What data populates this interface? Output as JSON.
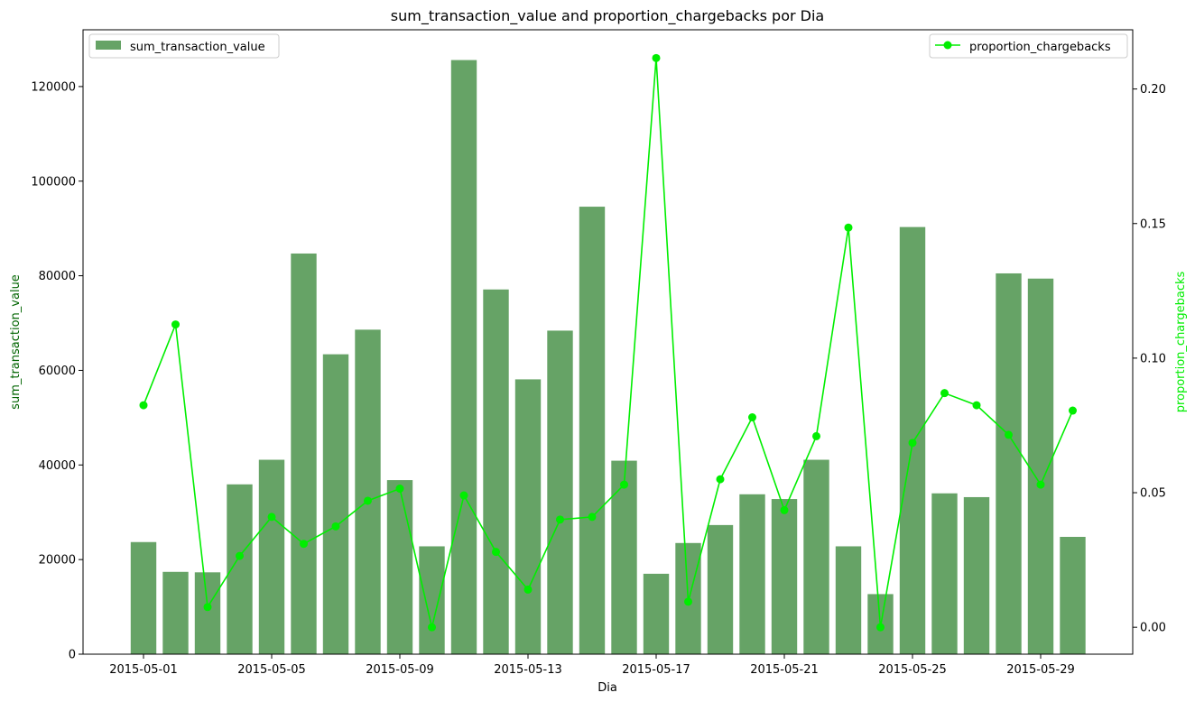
{
  "chart_data": {
    "type": "bar+line",
    "title": "sum_transaction_value and proportion_chargebacks por Dia",
    "xlabel": "Dia",
    "ylabel_left": "sum_transaction_value",
    "ylabel_right": "proportion_chargebacks",
    "dates": [
      "2015-05-01",
      "2015-05-02",
      "2015-05-03",
      "2015-05-04",
      "2015-05-05",
      "2015-05-06",
      "2015-05-07",
      "2015-05-08",
      "2015-05-09",
      "2015-05-10",
      "2015-05-11",
      "2015-05-12",
      "2015-05-13",
      "2015-05-14",
      "2015-05-15",
      "2015-05-16",
      "2015-05-17",
      "2015-05-18",
      "2015-05-19",
      "2015-05-20",
      "2015-05-21",
      "2015-05-22",
      "2015-05-23",
      "2015-05-24",
      "2015-05-25",
      "2015-05-26",
      "2015-05-27",
      "2015-05-28",
      "2015-05-29",
      "2015-05-30"
    ],
    "x_ticks": [
      "2015-05-01",
      "2015-05-05",
      "2015-05-09",
      "2015-05-13",
      "2015-05-17",
      "2015-05-21",
      "2015-05-25",
      "2015-05-29"
    ],
    "y_left_ticks": [
      0,
      20000,
      40000,
      60000,
      80000,
      100000,
      120000
    ],
    "y_right_ticks": [
      "0.00",
      "0.05",
      "0.10",
      "0.15",
      "0.20"
    ],
    "y_left_lim": [
      0,
      132000
    ],
    "y_right_lim": [
      -0.01,
      0.222
    ],
    "series": [
      {
        "name": "sum_transaction_value",
        "type": "bar",
        "axis": "left",
        "color": "#66a366",
        "values": [
          23700,
          17400,
          17300,
          35900,
          41100,
          84700,
          63400,
          68600,
          36800,
          22800,
          125600,
          77100,
          58100,
          68400,
          94600,
          40900,
          17000,
          23500,
          27300,
          33800,
          32800,
          41100,
          22800,
          12700,
          90300,
          34000,
          33200,
          80500,
          79400,
          24800
        ]
      },
      {
        "name": "proportion_chargebacks",
        "type": "line",
        "axis": "right",
        "color": "#00ee00",
        "values": [
          0.0825,
          0.1125,
          0.0075,
          0.0265,
          0.041,
          0.031,
          0.0375,
          0.047,
          0.0515,
          0.0,
          0.049,
          0.028,
          0.014,
          0.04,
          0.041,
          0.053,
          0.2115,
          0.0095,
          0.055,
          0.078,
          0.0435,
          0.071,
          0.1485,
          0.0,
          0.0685,
          0.087,
          0.0825,
          0.0715,
          0.053,
          0.0805
        ]
      }
    ],
    "legend": [
      {
        "label": "sum_transaction_value",
        "placement": "upper-left"
      },
      {
        "label": "proportion_chargebacks",
        "placement": "upper-right"
      }
    ],
    "grid": false
  }
}
